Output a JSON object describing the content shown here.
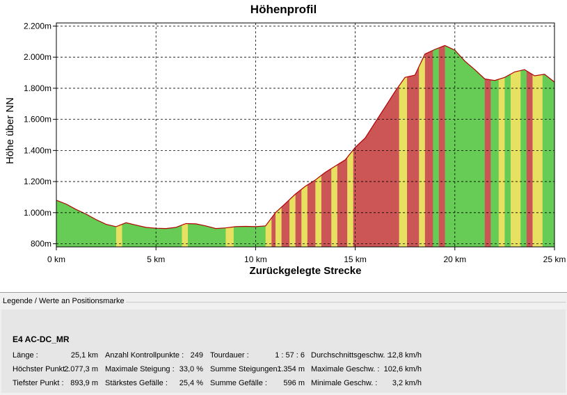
{
  "chart_data": {
    "type": "area",
    "title": "Höhenprofil",
    "xlabel": "Zurückgelegte Strecke",
    "ylabel": "Höhe über NN",
    "x_ticks": [
      "0 km",
      "5 km",
      "10 km",
      "15 km",
      "20 km",
      "25 km"
    ],
    "y_ticks": [
      "800m",
      "1.000m",
      "1.200m",
      "1.400m",
      "1.600m",
      "1.800m",
      "2.000m",
      "2.200m"
    ],
    "xlim": [
      0,
      25
    ],
    "ylim": [
      780,
      2220
    ],
    "grid": true,
    "colors": {
      "flat": "#66cc55",
      "moderate": "#e8e060",
      "steep": "#cc5555",
      "line": "#b00000"
    },
    "profile_x_km": [
      0,
      0.5,
      1,
      1.5,
      2,
      2.5,
      3,
      3.5,
      4,
      4.5,
      5,
      5.5,
      6,
      6.5,
      7,
      7.5,
      8,
      8.5,
      9,
      9.5,
      10,
      10.5,
      11,
      11.5,
      12,
      12.5,
      13,
      13.5,
      14,
      14.5,
      15,
      15.5,
      16,
      16.5,
      17,
      17.5,
      18,
      18.5,
      19,
      19.5,
      20,
      20.5,
      21,
      21.5,
      22,
      22.5,
      23,
      23.5,
      24,
      24.5,
      25
    ],
    "profile_elev_m": [
      1080,
      1055,
      1020,
      990,
      955,
      925,
      910,
      935,
      920,
      905,
      900,
      898,
      905,
      930,
      928,
      915,
      898,
      902,
      910,
      912,
      910,
      915,
      1000,
      1060,
      1120,
      1170,
      1210,
      1260,
      1300,
      1340,
      1420,
      1480,
      1580,
      1680,
      1780,
      1870,
      1885,
      2020,
      2050,
      2075,
      2045,
      1975,
      1920,
      1860,
      1850,
      1870,
      1905,
      1920,
      1880,
      1890,
      1840
    ],
    "slope_segments": [
      {
        "from": 0,
        "to": 3.0,
        "class": "flat"
      },
      {
        "from": 3.0,
        "to": 3.3,
        "class": "moderate"
      },
      {
        "from": 3.3,
        "to": 6.3,
        "class": "flat"
      },
      {
        "from": 6.3,
        "to": 6.6,
        "class": "moderate"
      },
      {
        "from": 6.6,
        "to": 8.5,
        "class": "flat"
      },
      {
        "from": 8.5,
        "to": 8.9,
        "class": "moderate"
      },
      {
        "from": 8.9,
        "to": 10.5,
        "class": "flat"
      },
      {
        "from": 10.5,
        "to": 10.8,
        "class": "moderate"
      },
      {
        "from": 10.8,
        "to": 11.0,
        "class": "steep"
      },
      {
        "from": 11.0,
        "to": 11.3,
        "class": "moderate"
      },
      {
        "from": 11.3,
        "to": 11.7,
        "class": "steep"
      },
      {
        "from": 11.7,
        "to": 12.0,
        "class": "moderate"
      },
      {
        "from": 12.0,
        "to": 12.3,
        "class": "steep"
      },
      {
        "from": 12.3,
        "to": 12.6,
        "class": "moderate"
      },
      {
        "from": 12.6,
        "to": 13.0,
        "class": "steep"
      },
      {
        "from": 13.0,
        "to": 13.3,
        "class": "moderate"
      },
      {
        "from": 13.3,
        "to": 13.8,
        "class": "steep"
      },
      {
        "from": 13.8,
        "to": 14.1,
        "class": "moderate"
      },
      {
        "from": 14.1,
        "to": 14.6,
        "class": "steep"
      },
      {
        "from": 14.6,
        "to": 14.9,
        "class": "moderate"
      },
      {
        "from": 14.9,
        "to": 17.2,
        "class": "steep"
      },
      {
        "from": 17.2,
        "to": 17.6,
        "class": "moderate"
      },
      {
        "from": 17.6,
        "to": 18.2,
        "class": "steep"
      },
      {
        "from": 18.2,
        "to": 18.5,
        "class": "moderate"
      },
      {
        "from": 18.5,
        "to": 18.9,
        "class": "steep"
      },
      {
        "from": 18.9,
        "to": 19.2,
        "class": "flat"
      },
      {
        "from": 19.2,
        "to": 19.5,
        "class": "steep"
      },
      {
        "from": 19.5,
        "to": 21.5,
        "class": "flat"
      },
      {
        "from": 21.5,
        "to": 21.8,
        "class": "steep"
      },
      {
        "from": 21.8,
        "to": 22.2,
        "class": "flat"
      },
      {
        "from": 22.2,
        "to": 22.5,
        "class": "moderate"
      },
      {
        "from": 22.5,
        "to": 22.8,
        "class": "flat"
      },
      {
        "from": 22.8,
        "to": 23.3,
        "class": "moderate"
      },
      {
        "from": 23.3,
        "to": 23.6,
        "class": "flat"
      },
      {
        "from": 23.6,
        "to": 23.9,
        "class": "steep"
      },
      {
        "from": 23.9,
        "to": 24.4,
        "class": "moderate"
      },
      {
        "from": 24.4,
        "to": 25.0,
        "class": "flat"
      }
    ]
  },
  "legend": {
    "caption": "Legende / Werte an Positionsmarke",
    "track_name": "E4 AC-DC_MR",
    "rows": [
      [
        {
          "label": "Länge :",
          "value": "25,1 km"
        },
        {
          "label": "Anzahl Kontrollpunkte :",
          "value": "249"
        },
        {
          "label": "Tourdauer :",
          "value": "1 : 57 : 6"
        },
        {
          "label": "Durchschnittsgeschw. :",
          "value": "12,8 km/h"
        }
      ],
      [
        {
          "label": "Höchster Punkt :",
          "value": "2.077,3 m"
        },
        {
          "label": "Maximale Steigung :",
          "value": "33,0 %"
        },
        {
          "label": "Summe Steigungen :",
          "value": "1.354 m"
        },
        {
          "label": "Maximale Geschw. :",
          "value": "102,6 km/h"
        }
      ],
      [
        {
          "label": "Tiefster Punkt :",
          "value": "893,9 m"
        },
        {
          "label": "Stärkstes Gefälle :",
          "value": "25,4 %"
        },
        {
          "label": "Summe Gefälle :",
          "value": "596 m"
        },
        {
          "label": "Minimale Geschw. :",
          "value": "3,2 km/h"
        }
      ]
    ]
  }
}
